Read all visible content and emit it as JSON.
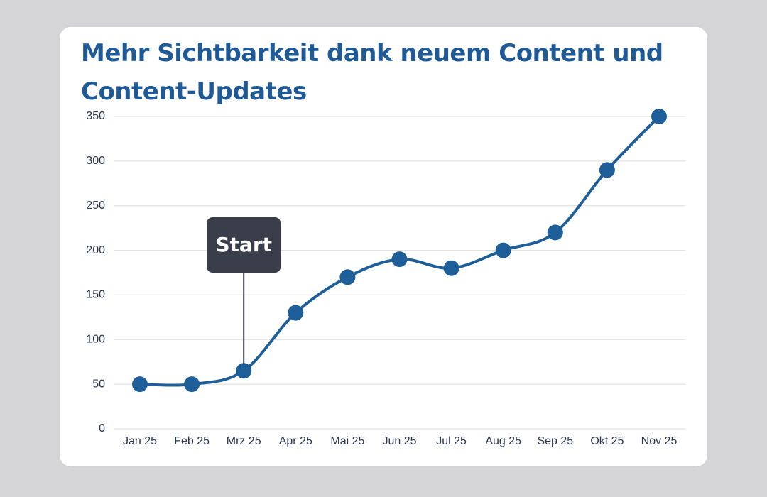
{
  "chart_data": {
    "type": "line",
    "title": "Mehr Sichtbarkeit dank neuem Content und Content-Updates",
    "categories": [
      "Jan 25",
      "Feb 25",
      "Mrz 25",
      "Apr 25",
      "Mai 25",
      "Jun 25",
      "Jul 25",
      "Aug 25",
      "Sep 25",
      "Okt 25",
      "Nov 25"
    ],
    "values": [
      50,
      50,
      65,
      130,
      170,
      190,
      180,
      200,
      220,
      290,
      350
    ],
    "color": "#1f5f99",
    "smooth": true,
    "ylim": [
      0,
      350
    ],
    "yticks": [
      0,
      50,
      100,
      150,
      200,
      250,
      300,
      350
    ],
    "grid": true,
    "annotations": [
      {
        "label": "Start",
        "category": "Mrz 25"
      }
    ]
  }
}
